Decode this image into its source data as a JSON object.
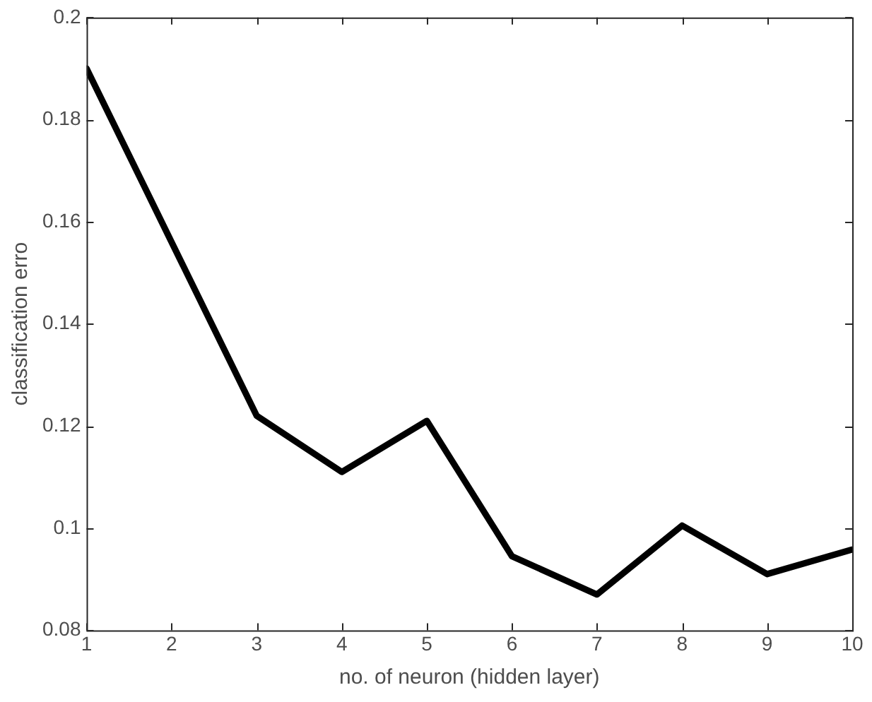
{
  "chart_data": {
    "type": "line",
    "xlabel": "no. of neuron (hidden layer)",
    "ylabel": "classification erro",
    "x": [
      1,
      2,
      3,
      4,
      5,
      6,
      7,
      8,
      9,
      10
    ],
    "series": [
      {
        "color": "#000000",
        "values": [
          0.19,
          0.156,
          0.122,
          0.111,
          0.121,
          0.0945,
          0.087,
          0.1005,
          0.091,
          0.0958
        ]
      }
    ],
    "xlim": [
      1,
      10
    ],
    "xticks": [
      1,
      2,
      3,
      4,
      5,
      6,
      7,
      8,
      9,
      10
    ],
    "ylim": [
      0.08,
      0.2
    ],
    "yticks": [
      0.08,
      0.1,
      0.12,
      0.14,
      0.16,
      0.18,
      0.2
    ],
    "marker": "none",
    "line_style": "solid",
    "legend": false
  }
}
